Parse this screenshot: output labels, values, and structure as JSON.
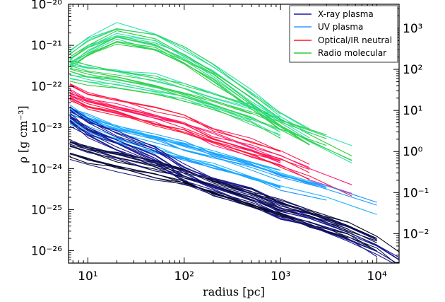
{
  "chart_data": {
    "type": "line",
    "xlabel": "radius  [pc]",
    "ylabel": "ρ  [g cm⁻³]",
    "xscale": "log",
    "yscale": "log",
    "xlim": [
      6.3,
      17000
    ],
    "ylim": [
      5e-27,
      1e-20
    ],
    "right_axis": {
      "scale": "log",
      "ticks": [
        0.01,
        0.1,
        1,
        10,
        100,
        1000
      ],
      "tick_labels": [
        "10⁻²",
        "10⁻¹",
        "10⁰",
        "10¹",
        "10²",
        "10³"
      ]
    },
    "x_ticks": [
      10,
      100,
      1000,
      10000
    ],
    "x_tick_labels": [
      "10¹",
      "10²",
      "10³",
      "10⁴"
    ],
    "y_ticks": [
      1e-26,
      1e-25,
      1e-24,
      1e-23,
      1e-22,
      1e-21,
      1e-20
    ],
    "y_tick_labels": [
      "10⁻²⁶",
      "10⁻²⁵",
      "10⁻²⁴",
      "10⁻²³",
      "10⁻²²",
      "10⁻²¹",
      "10⁻²⁰"
    ],
    "legend_position": "top-right",
    "legend": [
      {
        "label": "X-ray plasma",
        "color": "#1a1aa0"
      },
      {
        "label": "UV plasma",
        "color": "#3399ff"
      },
      {
        "label": "Optical/IR neutral",
        "color": "#ff1a1a"
      },
      {
        "label": "Radio molecular",
        "color": "#33cc33"
      }
    ],
    "series": [
      {
        "group": "Radio molecular",
        "color_start": "#2ee6c0",
        "color_end": "#33cc33",
        "x": [
          6.5,
          10,
          20,
          50,
          100,
          200,
          500,
          1000,
          2000,
          5500
        ],
        "y": [
          5e-22,
          1e-21,
          2e-21,
          1.3e-21,
          6e-22,
          2.2e-22,
          5e-23,
          1.5e-23,
          6e-24,
          2e-24
        ]
      },
      {
        "group": "Radio molecular",
        "color_start": "#2ee6c0",
        "color_end": "#33cc33",
        "x": [
          6.5,
          10,
          20,
          50,
          100,
          200,
          500,
          1000,
          3000
        ],
        "y": [
          2.5e-22,
          2e-22,
          1.6e-22,
          1.1e-22,
          7e-23,
          4e-23,
          2e-23,
          1e-23,
          4e-24
        ]
      },
      {
        "group": "Optical/IR neutral",
        "color_start": "#ff1aa0",
        "color_end": "#ff1a1a",
        "x": [
          6.5,
          10,
          20,
          50,
          100,
          200,
          500,
          1000,
          2000,
          5500
        ],
        "y": [
          8e-23,
          5e-23,
          3.5e-23,
          2e-23,
          1.3e-23,
          7e-24,
          3.5e-24,
          2e-24,
          1e-24,
          4e-25
        ]
      },
      {
        "group": "UV plasma",
        "color_start": "#1a8cff",
        "color_end": "#1ab8ff",
        "x": [
          6.5,
          10,
          20,
          50,
          100,
          200,
          500,
          1000,
          3000,
          10000
        ],
        "y": [
          2e-23,
          1.2e-23,
          7e-24,
          4e-24,
          2.5e-24,
          1.6e-24,
          9e-25,
          5e-25,
          2.5e-25,
          1e-25
        ]
      },
      {
        "group": "X-ray plasma",
        "color_start": "#1a1a80",
        "color_end": "#1a1aa0",
        "x": [
          6.5,
          10,
          20,
          50,
          100,
          200,
          500,
          1000,
          2000,
          5000,
          10000,
          17000
        ],
        "y": [
          2e-23,
          1e-23,
          5e-24,
          2e-24,
          8e-25,
          4e-25,
          2e-25,
          1e-25,
          6e-26,
          3e-26,
          1.3e-26,
          6e-27
        ]
      },
      {
        "group": "X-ray plasma",
        "color_start": "#000000",
        "color_end": "#1a1a80",
        "x": [
          6.5,
          10,
          20,
          50,
          100,
          200,
          500,
          1000,
          2000,
          5000,
          10000,
          17000
        ],
        "y": [
          3e-24,
          2.2e-24,
          1.5e-24,
          9e-25,
          6e-25,
          3.5e-25,
          1.8e-25,
          1e-25,
          6e-26,
          3e-26,
          1.4e-26,
          6e-27
        ]
      }
    ]
  }
}
